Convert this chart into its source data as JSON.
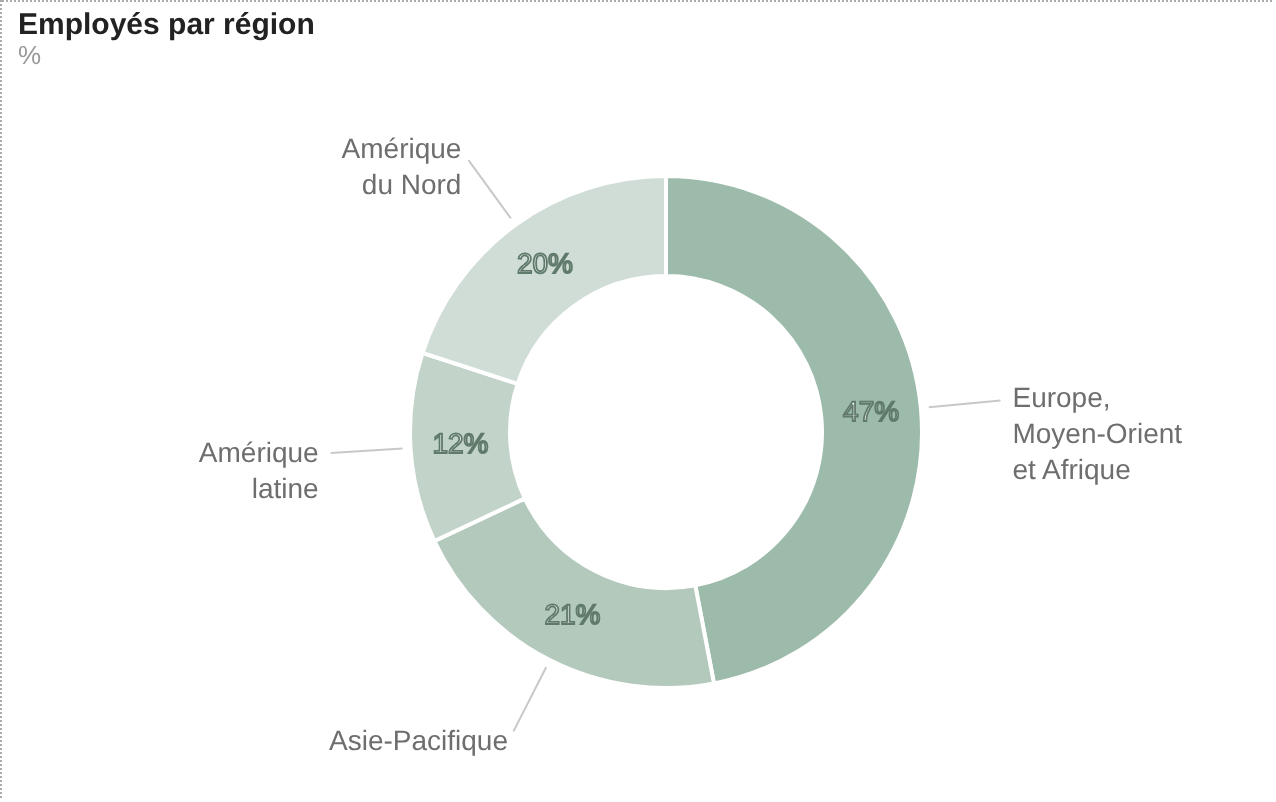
{
  "chart_data": {
    "type": "donut",
    "title": "Employés par région",
    "subtitle": "%",
    "categories": [
      "Europe, Moyen-Orient et Afrique",
      "Asie-Pacifique",
      "Amérique latine",
      "Amérique du Nord"
    ],
    "values": [
      47,
      21,
      12,
      20
    ],
    "value_labels": [
      "47%",
      "21%",
      "12%",
      "20%"
    ],
    "colors": [
      "#9dbbaa",
      "#b3c9bc",
      "#c2d4ca",
      "#d0ddd6"
    ],
    "legend": false
  }
}
